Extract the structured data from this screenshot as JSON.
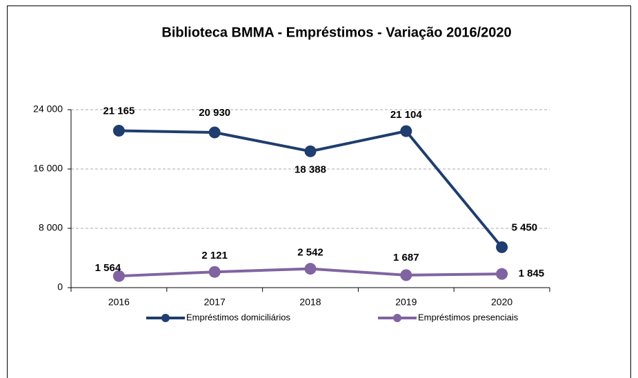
{
  "chart_data": {
    "type": "line",
    "title": "Biblioteca BMMA - Empréstimos - Variação 2016/2020",
    "categories": [
      "2016",
      "2017",
      "2018",
      "2019",
      "2020"
    ],
    "series": [
      {
        "name": "Empréstimos domiciliários",
        "color": "#1f3d6e",
        "values": [
          21165,
          20930,
          18388,
          21104,
          5450
        ],
        "value_labels": [
          "21 165",
          "20 930",
          "18 388",
          "21 104",
          "5 450"
        ]
      },
      {
        "name": "Empréstimos presenciais",
        "color": "#8064a2",
        "values": [
          1564,
          2121,
          2542,
          1687,
          1845
        ],
        "value_labels": [
          "1 564",
          "2 121",
          "2 542",
          "1 687",
          "1 845"
        ]
      }
    ],
    "ylim": [
      0,
      24000
    ],
    "yticks": [
      0,
      {
        "value": 8000,
        "label": "8 000"
      },
      {
        "value": 16000,
        "label": "16 000"
      },
      {
        "value": 24000,
        "label": "24 000"
      }
    ],
    "grid": true,
    "legend": "bottom"
  }
}
